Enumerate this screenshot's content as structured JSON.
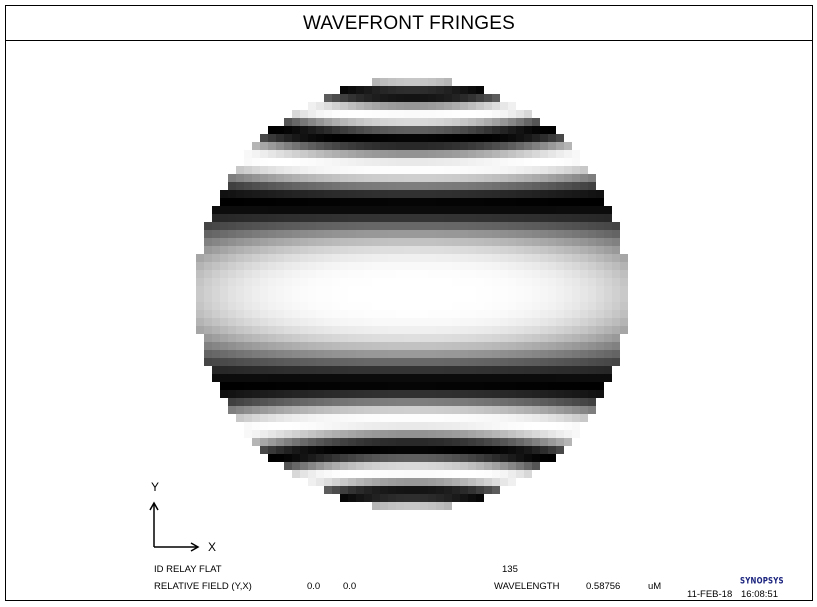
{
  "title": "WAVEFRONT FRINGES",
  "axis": {
    "y_label": "Y",
    "x_label": "X"
  },
  "info": {
    "id_label": "ID RELAY FLAT",
    "id_value": "135",
    "field_label": "RELATIVE FIELD (Y,X)",
    "field_y": "0.0",
    "field_x": "0.0",
    "wavelength_label": "WAVELENGTH",
    "wavelength_value": "0.58756",
    "wavelength_unit": "uM",
    "date": "11-FEB-18",
    "time": "16:08:51",
    "logo_text": "SYNOPSYS"
  },
  "colors": {
    "background": "#ffffff",
    "border": "#000000",
    "logo": "#1a237e"
  },
  "icons": [
    "axis-arrow-y-icon",
    "axis-arrow-x-icon",
    "synopsys-logo"
  ]
}
